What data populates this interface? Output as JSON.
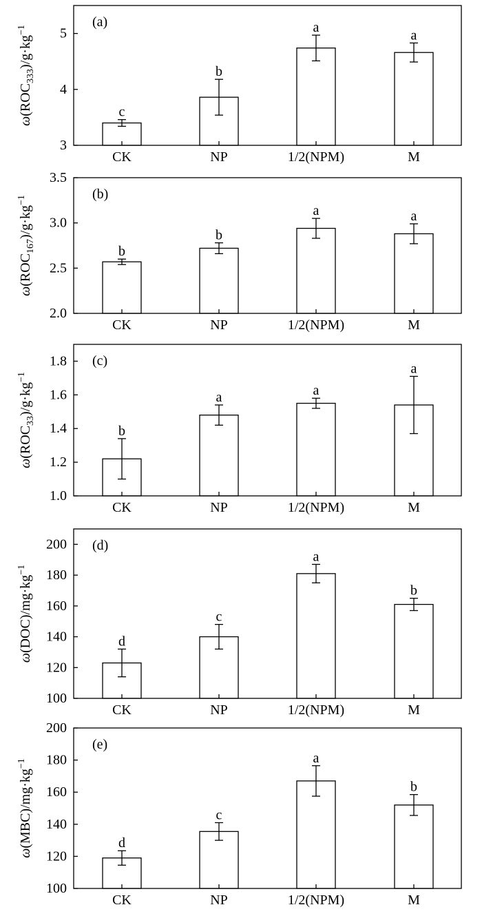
{
  "chart_data": [
    {
      "type": "bar",
      "panel": "(a)",
      "ylabel": {
        "pre": "ω",
        "main": "(ROC",
        "sub": "333",
        "post": ")/g·kg",
        "sup": "−1"
      },
      "categories": [
        "CK",
        "NP",
        "1/2(NPM)",
        "M"
      ],
      "values": [
        3.4,
        3.86,
        4.74,
        4.66
      ],
      "errors": [
        0.06,
        0.32,
        0.23,
        0.17
      ],
      "significance": [
        "c",
        "b",
        "a",
        "a"
      ],
      "ylim": [
        3,
        5.5
      ],
      "yticks": [
        3,
        4,
        5
      ],
      "yticklabels": [
        "3",
        "4",
        "5"
      ]
    },
    {
      "type": "bar",
      "panel": "(b)",
      "ylabel": {
        "pre": "ω",
        "main": "(ROC",
        "sub": "167",
        "post": ")/g·kg",
        "sup": "−1"
      },
      "categories": [
        "CK",
        "NP",
        "1/2(NPM)",
        "M"
      ],
      "values": [
        2.57,
        2.72,
        2.94,
        2.88
      ],
      "errors": [
        0.03,
        0.06,
        0.11,
        0.11
      ],
      "significance": [
        "b",
        "b",
        "a",
        "a"
      ],
      "ylim": [
        2.0,
        3.5
      ],
      "yticks": [
        2.0,
        2.5,
        3.0,
        3.5
      ],
      "yticklabels": [
        "2.0",
        "2.5",
        "3.0",
        "3.5"
      ]
    },
    {
      "type": "bar",
      "panel": "(c)",
      "ylabel": {
        "pre": "ω",
        "main": "(ROC",
        "sub": "33",
        "post": ")/g·kg",
        "sup": "−1"
      },
      "categories": [
        "CK",
        "NP",
        "1/2(NPM)",
        "M"
      ],
      "values": [
        1.22,
        1.48,
        1.55,
        1.54
      ],
      "errors": [
        0.12,
        0.06,
        0.03,
        0.17
      ],
      "significance": [
        "b",
        "a",
        "a",
        "a"
      ],
      "ylim": [
        1.0,
        1.9
      ],
      "yticks": [
        1.0,
        1.2,
        1.4,
        1.6,
        1.8
      ],
      "yticklabels": [
        "1.0",
        "1.2",
        "1.4",
        "1.6",
        "1.8"
      ]
    },
    {
      "type": "bar",
      "panel": "(d)",
      "ylabel": {
        "pre": "ω",
        "main": "(DOC)/mg·kg",
        "sub": "",
        "post": "",
        "sup": "−1"
      },
      "categories": [
        "CK",
        "NP",
        "1/2(NPM)",
        "M"
      ],
      "values": [
        123,
        140,
        181,
        161
      ],
      "errors": [
        9,
        8,
        6,
        4
      ],
      "significance": [
        "d",
        "c",
        "a",
        "b"
      ],
      "ylim": [
        100,
        210
      ],
      "yticks": [
        100,
        120,
        140,
        160,
        180,
        200
      ],
      "yticklabels": [
        "100",
        "120",
        "140",
        "160",
        "180",
        "200"
      ]
    },
    {
      "type": "bar",
      "panel": "(e)",
      "ylabel": {
        "pre": "ω",
        "main": "(MBC)/mg·kg",
        "sub": "",
        "post": "",
        "sup": "−1"
      },
      "categories": [
        "CK",
        "NP",
        "1/2(NPM)",
        "M"
      ],
      "values": [
        119,
        135.5,
        167,
        152
      ],
      "errors": [
        4.5,
        5.5,
        9.5,
        6.5
      ],
      "significance": [
        "d",
        "c",
        "a",
        "b"
      ],
      "ylim": [
        100,
        200
      ],
      "yticks": [
        100,
        120,
        140,
        160,
        180,
        200
      ],
      "yticklabels": [
        "100",
        "120",
        "140",
        "160",
        "180",
        "200"
      ]
    }
  ]
}
